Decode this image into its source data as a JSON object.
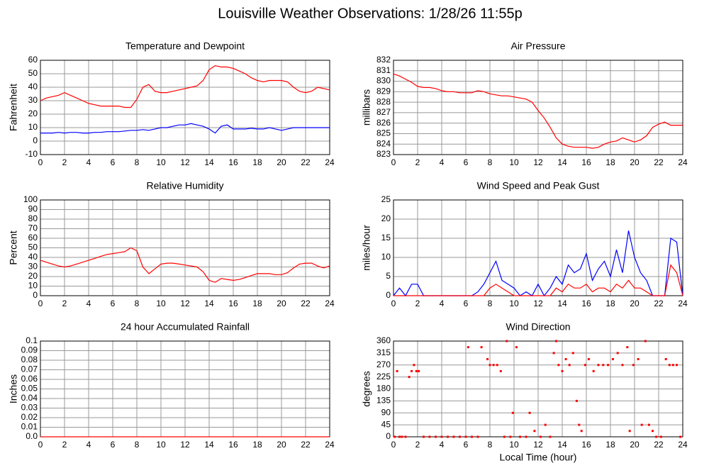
{
  "title": "Louisville Weather Observations: 1/28/26 11:55p",
  "chart_data": [
    {
      "type": "line",
      "title": "Temperature and Dewpoint",
      "ylabel": "Fahrenheit",
      "x": [
        0,
        0.5,
        1,
        1.5,
        2,
        2.5,
        3,
        3.5,
        4,
        4.5,
        5,
        5.5,
        6,
        6.5,
        7,
        7.5,
        8,
        8.5,
        9,
        9.5,
        10,
        10.5,
        11,
        11.5,
        12,
        12.5,
        13,
        13.5,
        14,
        14.5,
        15,
        15.5,
        16,
        16.5,
        17,
        17.5,
        18,
        18.5,
        19,
        19.5,
        20,
        20.5,
        21,
        21.5,
        22,
        22.5,
        23,
        23.5,
        24
      ],
      "series": [
        {
          "color": "#ff0000",
          "values": [
            30,
            32,
            33,
            34,
            36,
            34,
            32,
            30,
            28,
            27,
            26,
            26,
            26,
            26,
            25,
            25,
            31,
            40,
            42,
            37,
            36,
            36,
            37,
            38,
            39,
            40,
            41,
            45,
            53,
            56,
            55,
            55,
            54,
            52,
            50,
            47,
            45,
            44,
            45,
            45,
            45,
            44,
            40,
            37,
            36,
            37,
            40,
            39,
            38
          ]
        },
        {
          "color": "#0000ff",
          "values": [
            6,
            6,
            6,
            6.5,
            6,
            6.5,
            6.5,
            6,
            6,
            6.5,
            6.5,
            7,
            7,
            7,
            7.5,
            8,
            8,
            8.5,
            8,
            9,
            10,
            10,
            11,
            12,
            12,
            13,
            12,
            11,
            9,
            6,
            11,
            12,
            9,
            9,
            9,
            9.5,
            9,
            9,
            10,
            9,
            8,
            9,
            10,
            10,
            10,
            10,
            10,
            10,
            10
          ]
        }
      ],
      "xlim": [
        0,
        24
      ],
      "xticks": [
        0,
        2,
        4,
        6,
        8,
        10,
        12,
        14,
        16,
        18,
        20,
        22,
        24
      ],
      "ylim": [
        -10,
        60
      ],
      "yticks": [
        -10,
        0,
        10,
        20,
        30,
        40,
        50,
        60
      ],
      "grid": true
    },
    {
      "type": "line",
      "title": "Air Pressure",
      "ylabel": "millibars",
      "x": [
        0,
        0.5,
        1,
        1.5,
        2,
        2.5,
        3,
        3.5,
        4,
        4.5,
        5,
        5.5,
        6,
        6.5,
        7,
        7.5,
        8,
        8.5,
        9,
        9.5,
        10,
        10.5,
        11,
        11.5,
        12,
        12.5,
        13,
        13.5,
        14,
        14.5,
        15,
        15.5,
        16,
        16.5,
        17,
        17.5,
        18,
        18.5,
        19,
        19.5,
        20,
        20.5,
        21,
        21.5,
        22,
        22.5,
        23,
        23.5,
        24
      ],
      "series": [
        {
          "color": "#ff0000",
          "values": [
            830.7,
            830.5,
            830.2,
            829.9,
            829.5,
            829.4,
            829.4,
            829.3,
            829.1,
            829.0,
            829.0,
            828.9,
            828.9,
            828.9,
            829.1,
            829.0,
            828.8,
            828.7,
            828.6,
            828.6,
            828.5,
            828.4,
            828.3,
            828.0,
            827.2,
            826.5,
            825.6,
            824.6,
            824.0,
            823.8,
            823.7,
            823.7,
            823.7,
            823.6,
            823.7,
            824.0,
            824.2,
            824.3,
            824.6,
            824.4,
            824.2,
            824.4,
            824.8,
            825.6,
            825.9,
            826.1,
            825.8,
            825.8,
            825.8
          ]
        }
      ],
      "xlim": [
        0,
        24
      ],
      "xticks": [
        0,
        2,
        4,
        6,
        8,
        10,
        12,
        14,
        16,
        18,
        20,
        22,
        24
      ],
      "ylim": [
        823,
        832
      ],
      "yticks": [
        823,
        824,
        825,
        826,
        827,
        828,
        829,
        830,
        831,
        832
      ],
      "grid": true
    },
    {
      "type": "line",
      "title": "Relative Humidity",
      "ylabel": "Percent",
      "x": [
        0,
        0.5,
        1,
        1.5,
        2,
        2.5,
        3,
        3.5,
        4,
        4.5,
        5,
        5.5,
        6,
        6.5,
        7,
        7.5,
        8,
        8.5,
        9,
        9.5,
        10,
        10.5,
        11,
        11.5,
        12,
        12.5,
        13,
        13.5,
        14,
        14.5,
        15,
        15.5,
        16,
        16.5,
        17,
        17.5,
        18,
        18.5,
        19,
        19.5,
        20,
        20.5,
        21,
        21.5,
        22,
        22.5,
        23,
        23.5,
        24
      ],
      "series": [
        {
          "color": "#ff0000",
          "values": [
            37,
            35,
            33,
            31,
            30,
            31,
            33,
            35,
            37,
            39,
            41,
            43,
            44,
            45,
            46,
            50,
            47,
            30,
            23,
            28,
            33,
            34,
            34,
            33,
            32,
            31,
            30,
            25,
            16,
            14,
            18,
            17,
            16,
            17,
            19,
            21,
            23,
            23,
            23,
            22,
            22,
            24,
            29,
            33,
            34,
            34,
            31,
            29,
            31
          ]
        }
      ],
      "xlim": [
        0,
        24
      ],
      "xticks": [
        0,
        2,
        4,
        6,
        8,
        10,
        12,
        14,
        16,
        18,
        20,
        22,
        24
      ],
      "ylim": [
        0,
        100
      ],
      "yticks": [
        0,
        10,
        20,
        30,
        40,
        50,
        60,
        70,
        80,
        90,
        100
      ],
      "grid": true
    },
    {
      "type": "line",
      "title": "Wind Speed and Peak Gust",
      "ylabel": "miles/hour",
      "x": [
        0,
        0.5,
        1,
        1.5,
        2,
        2.5,
        3,
        3.5,
        4,
        4.5,
        5,
        5.5,
        6,
        6.5,
        7,
        7.5,
        8,
        8.5,
        9,
        9.5,
        10,
        10.5,
        11,
        11.5,
        12,
        12.5,
        13,
        13.5,
        14,
        14.5,
        15,
        15.5,
        16,
        16.5,
        17,
        17.5,
        18,
        18.5,
        19,
        19.5,
        20,
        20.5,
        21,
        21.5,
        22,
        22.5,
        23,
        23.5,
        24
      ],
      "series": [
        {
          "color": "#0000ff",
          "values": [
            0,
            2,
            0,
            3,
            3,
            0,
            0,
            0,
            0,
            0,
            0,
            0,
            0,
            0,
            1,
            3,
            6,
            9,
            4,
            3,
            2,
            0,
            1,
            0,
            3,
            0,
            2,
            5,
            3,
            8,
            6,
            7,
            11,
            4,
            7,
            9,
            5,
            12,
            6,
            17,
            10,
            6,
            4,
            0,
            0,
            0,
            15,
            14,
            0
          ]
        },
        {
          "color": "#ff0000",
          "values": [
            0,
            0,
            0,
            0,
            0,
            0,
            0,
            0,
            0,
            0,
            0,
            0,
            0,
            0,
            0,
            0,
            2,
            3,
            2,
            1,
            0,
            0,
            0,
            0,
            0,
            0,
            0,
            2,
            1,
            3,
            2,
            2,
            3,
            1,
            2,
            2,
            1,
            3,
            2,
            4,
            2,
            2,
            1,
            0,
            0,
            0,
            8,
            6,
            0
          ]
        }
      ],
      "xlim": [
        0,
        24
      ],
      "xticks": [
        0,
        2,
        4,
        6,
        8,
        10,
        12,
        14,
        16,
        18,
        20,
        22,
        24
      ],
      "ylim": [
        0,
        25
      ],
      "yticks": [
        0,
        5,
        10,
        15,
        20,
        25
      ],
      "grid": true
    },
    {
      "type": "line",
      "title": "24 hour Accumulated Rainfall",
      "ylabel": "Inches",
      "x": [
        0,
        24
      ],
      "series": [
        {
          "color": "#ff0000",
          "values": [
            0,
            0
          ]
        }
      ],
      "xlim": [
        0,
        24
      ],
      "xticks": [
        0,
        2,
        4,
        6,
        8,
        10,
        12,
        14,
        16,
        18,
        20,
        22,
        24
      ],
      "ylim": [
        0,
        0.1
      ],
      "yticks": [
        {
          "value": 0,
          "label": "0.0"
        },
        0.01,
        0.02,
        0.03,
        0.04,
        0.05,
        0.06,
        0.07,
        0.08,
        0.09,
        0.1
      ],
      "grid": true
    },
    {
      "type": "scatter",
      "title": "Wind Direction",
      "ylabel": "degrees",
      "xlabel": "Local Time (hour)",
      "x": [
        0.1,
        0.3,
        0.5,
        0.7,
        1.0,
        1.3,
        1.5,
        1.7,
        1.9,
        2.1,
        2.5,
        3.0,
        3.5,
        4.0,
        4.5,
        5.0,
        5.5,
        6.0,
        6.2,
        6.5,
        7.0,
        7.3,
        7.8,
        8.0,
        8.3,
        8.6,
        8.9,
        9.2,
        9.4,
        9.7,
        9.9,
        10.2,
        10.5,
        11.0,
        11.3,
        11.7,
        12.2,
        12.6,
        13.0,
        13.3,
        13.5,
        13.7,
        14.0,
        14.3,
        14.6,
        14.9,
        15.2,
        15.4,
        15.6,
        15.9,
        16.2,
        16.6,
        17.0,
        17.4,
        17.8,
        18.2,
        18.6,
        19.0,
        19.4,
        19.6,
        19.9,
        20.3,
        20.6,
        20.9,
        21.2,
        21.5,
        21.8,
        22.2,
        22.6,
        22.9,
        23.2,
        23.5,
        23.8
      ],
      "color": "#ff0000",
      "values": [
        0,
        247,
        0,
        0,
        0,
        225,
        247,
        270,
        247,
        247,
        0,
        0,
        0,
        0,
        0,
        0,
        0,
        0,
        337,
        0,
        0,
        337,
        292,
        270,
        270,
        270,
        247,
        0,
        360,
        0,
        90,
        337,
        0,
        0,
        90,
        22,
        0,
        45,
        0,
        315,
        360,
        270,
        247,
        292,
        270,
        315,
        135,
        45,
        22,
        270,
        292,
        247,
        270,
        270,
        270,
        292,
        315,
        270,
        337,
        22,
        270,
        292,
        45,
        360,
        45,
        22,
        0,
        0,
        292,
        270,
        270,
        270,
        0
      ],
      "xlim": [
        0,
        24
      ],
      "xticks": [
        0,
        2,
        4,
        6,
        8,
        10,
        12,
        14,
        16,
        18,
        20,
        22,
        24
      ],
      "ylim": [
        0,
        360
      ],
      "yticks": [
        0,
        45,
        90,
        135,
        180,
        225,
        270,
        315,
        360
      ],
      "grid": true
    }
  ]
}
